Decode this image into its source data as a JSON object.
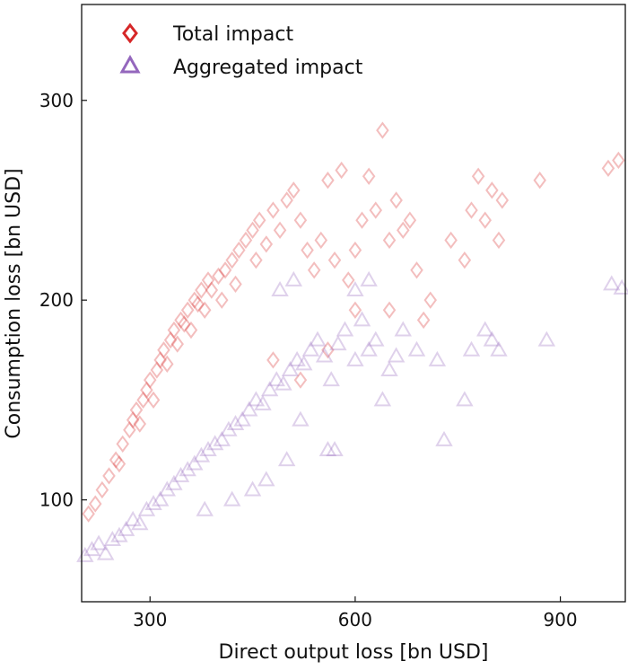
{
  "chart_data": {
    "type": "scatter",
    "title": "",
    "xlabel": "Direct output loss [bn USD]",
    "ylabel": "Consumption loss [bn USD]",
    "xlim": [
      200,
      995
    ],
    "ylim": [
      49,
      348
    ],
    "xticks": [
      300,
      600,
      900
    ],
    "yticks": [
      100,
      200,
      300
    ],
    "grid": false,
    "legend_position": "top-left",
    "series": [
      {
        "name": "Total impact",
        "marker": "diamond",
        "color": "#d62728",
        "points": [
          [
            210,
            93
          ],
          [
            220,
            98
          ],
          [
            230,
            105
          ],
          [
            240,
            112
          ],
          [
            250,
            120
          ],
          [
            255,
            118
          ],
          [
            260,
            128
          ],
          [
            270,
            135
          ],
          [
            275,
            140
          ],
          [
            280,
            145
          ],
          [
            285,
            138
          ],
          [
            290,
            150
          ],
          [
            295,
            155
          ],
          [
            300,
            160
          ],
          [
            305,
            150
          ],
          [
            310,
            165
          ],
          [
            315,
            170
          ],
          [
            320,
            175
          ],
          [
            325,
            168
          ],
          [
            330,
            180
          ],
          [
            335,
            185
          ],
          [
            340,
            178
          ],
          [
            345,
            190
          ],
          [
            350,
            188
          ],
          [
            355,
            195
          ],
          [
            360,
            185
          ],
          [
            365,
            200
          ],
          [
            370,
            198
          ],
          [
            375,
            205
          ],
          [
            380,
            195
          ],
          [
            385,
            210
          ],
          [
            390,
            205
          ],
          [
            400,
            212
          ],
          [
            405,
            200
          ],
          [
            410,
            215
          ],
          [
            420,
            220
          ],
          [
            425,
            208
          ],
          [
            430,
            225
          ],
          [
            440,
            230
          ],
          [
            450,
            235
          ],
          [
            455,
            220
          ],
          [
            460,
            240
          ],
          [
            470,
            228
          ],
          [
            480,
            245
          ],
          [
            490,
            235
          ],
          [
            500,
            250
          ],
          [
            510,
            255
          ],
          [
            520,
            240
          ],
          [
            530,
            225
          ],
          [
            540,
            215
          ],
          [
            550,
            230
          ],
          [
            560,
            260
          ],
          [
            570,
            220
          ],
          [
            580,
            265
          ],
          [
            590,
            210
          ],
          [
            600,
            225
          ],
          [
            610,
            240
          ],
          [
            620,
            262
          ],
          [
            630,
            245
          ],
          [
            640,
            285
          ],
          [
            650,
            230
          ],
          [
            660,
            250
          ],
          [
            670,
            235
          ],
          [
            680,
            240
          ],
          [
            690,
            215
          ],
          [
            700,
            190
          ],
          [
            710,
            200
          ],
          [
            740,
            230
          ],
          [
            760,
            220
          ],
          [
            770,
            245
          ],
          [
            780,
            262
          ],
          [
            790,
            240
          ],
          [
            800,
            255
          ],
          [
            810,
            230
          ],
          [
            815,
            250
          ],
          [
            870,
            260
          ],
          [
            970,
            266
          ],
          [
            985,
            270
          ],
          [
            520,
            160
          ],
          [
            560,
            175
          ],
          [
            600,
            195
          ],
          [
            650,
            195
          ],
          [
            480,
            170
          ]
        ]
      },
      {
        "name": "Aggregated impact",
        "marker": "triangle",
        "color": "#9467bd",
        "points": [
          [
            205,
            72
          ],
          [
            215,
            75
          ],
          [
            225,
            78
          ],
          [
            235,
            73
          ],
          [
            245,
            80
          ],
          [
            255,
            82
          ],
          [
            265,
            85
          ],
          [
            275,
            90
          ],
          [
            285,
            88
          ],
          [
            295,
            95
          ],
          [
            305,
            98
          ],
          [
            315,
            100
          ],
          [
            325,
            105
          ],
          [
            335,
            108
          ],
          [
            345,
            112
          ],
          [
            355,
            115
          ],
          [
            365,
            118
          ],
          [
            375,
            122
          ],
          [
            385,
            125
          ],
          [
            395,
            128
          ],
          [
            405,
            130
          ],
          [
            415,
            135
          ],
          [
            425,
            138
          ],
          [
            435,
            140
          ],
          [
            445,
            145
          ],
          [
            455,
            150
          ],
          [
            465,
            148
          ],
          [
            475,
            155
          ],
          [
            485,
            160
          ],
          [
            495,
            158
          ],
          [
            505,
            165
          ],
          [
            515,
            170
          ],
          [
            525,
            168
          ],
          [
            535,
            175
          ],
          [
            545,
            180
          ],
          [
            555,
            172
          ],
          [
            565,
            160
          ],
          [
            575,
            178
          ],
          [
            585,
            185
          ],
          [
            600,
            170
          ],
          [
            610,
            190
          ],
          [
            620,
            175
          ],
          [
            630,
            180
          ],
          [
            640,
            150
          ],
          [
            650,
            165
          ],
          [
            660,
            172
          ],
          [
            670,
            185
          ],
          [
            690,
            175
          ],
          [
            720,
            170
          ],
          [
            730,
            130
          ],
          [
            760,
            150
          ],
          [
            770,
            175
          ],
          [
            790,
            185
          ],
          [
            800,
            180
          ],
          [
            810,
            175
          ],
          [
            880,
            180
          ],
          [
            975,
            208
          ],
          [
            990,
            206
          ],
          [
            560,
            125
          ],
          [
            570,
            125
          ],
          [
            470,
            110
          ],
          [
            500,
            120
          ],
          [
            420,
            100
          ],
          [
            380,
            95
          ],
          [
            450,
            105
          ],
          [
            520,
            140
          ],
          [
            600,
            205
          ],
          [
            620,
            210
          ],
          [
            510,
            210
          ],
          [
            490,
            205
          ]
        ]
      }
    ]
  }
}
